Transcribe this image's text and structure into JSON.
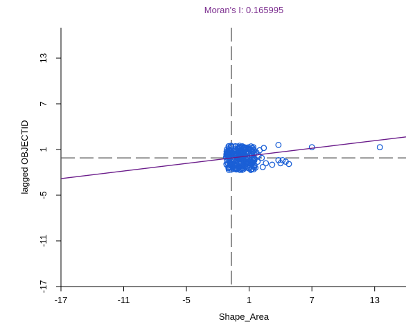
{
  "colors": {
    "title": "#7b2d8e",
    "fit_line": "#6a1b8a",
    "points": "#1a5fd6",
    "axis": "#000000",
    "reference_lines": "#555555"
  },
  "chart_data": {
    "type": "scatter",
    "title": "Moran's I: 0.165995",
    "xlabel": "Shape_Area",
    "ylabel": "lagged OBJECTID",
    "xlim": [
      -17,
      16
    ],
    "ylim": [
      -17,
      17
    ],
    "x_ticks": [
      -17,
      -11,
      -5,
      1,
      7,
      13
    ],
    "y_ticks": [
      -17,
      -11,
      -5,
      1,
      7,
      13
    ],
    "x_tick_labels": [
      "-17",
      "-11",
      "-5",
      "1",
      "7",
      "13"
    ],
    "y_tick_labels": [
      "-17",
      "-11",
      "-5",
      "1",
      "7",
      "13"
    ],
    "reference_lines": {
      "x": -0.7,
      "y": -0.1,
      "style": "dashed"
    },
    "fit_line": {
      "slope": 0.166,
      "intercept": 0.0
    },
    "cluster": {
      "description": "dense cluster of points",
      "x_range": [
        -1.2,
        1.6
      ],
      "y_range": [
        -1.7,
        1.5
      ]
    },
    "series": [
      {
        "values": [
          {
            "x": 13.5,
            "y": 1.3
          },
          {
            "x": 7.0,
            "y": 1.3
          },
          {
            "x": 3.8,
            "y": 1.6
          },
          {
            "x": 2.4,
            "y": 1.2
          },
          {
            "x": 2.0,
            "y": 0.9
          },
          {
            "x": 1.9,
            "y": 0.2
          },
          {
            "x": 2.2,
            "y": -0.1
          },
          {
            "x": 1.8,
            "y": -0.6
          },
          {
            "x": 2.6,
            "y": -0.8
          },
          {
            "x": 2.3,
            "y": -1.3
          },
          {
            "x": 3.8,
            "y": -0.4
          },
          {
            "x": 4.2,
            "y": -0.4
          },
          {
            "x": 4.5,
            "y": -0.6
          },
          {
            "x": 4.0,
            "y": -0.8
          },
          {
            "x": 4.8,
            "y": -0.9
          },
          {
            "x": 3.2,
            "y": -1.0
          },
          {
            "x": 1.6,
            "y": -1.4
          },
          {
            "x": 1.4,
            "y": 1.3
          },
          {
            "x": 1.7,
            "y": 0.6
          },
          {
            "x": 1.5,
            "y": -0.3
          }
        ]
      }
    ]
  }
}
